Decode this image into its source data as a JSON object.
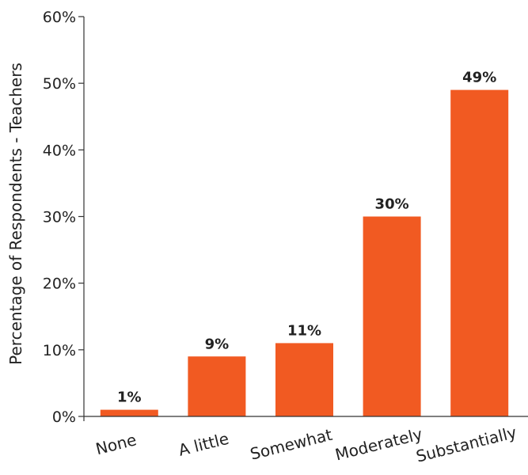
{
  "chart_data": {
    "type": "bar",
    "categories": [
      "None",
      "A little",
      "Somewhat",
      "Moderately",
      "Substantially"
    ],
    "values": [
      1,
      9,
      11,
      30,
      49
    ],
    "data_labels": [
      "1%",
      "9%",
      "11%",
      "30%",
      "49%"
    ],
    "title": "",
    "xlabel": "",
    "ylabel": "Percentage of Respondents - Teachers",
    "ylim": [
      0,
      60
    ],
    "yticks": [
      0,
      10,
      20,
      30,
      40,
      50,
      60
    ],
    "ytick_labels": [
      "0%",
      "10%",
      "20%",
      "30%",
      "40%",
      "50%",
      "60%"
    ],
    "bar_color": "#F15A22",
    "grid": false,
    "legend": "none"
  }
}
